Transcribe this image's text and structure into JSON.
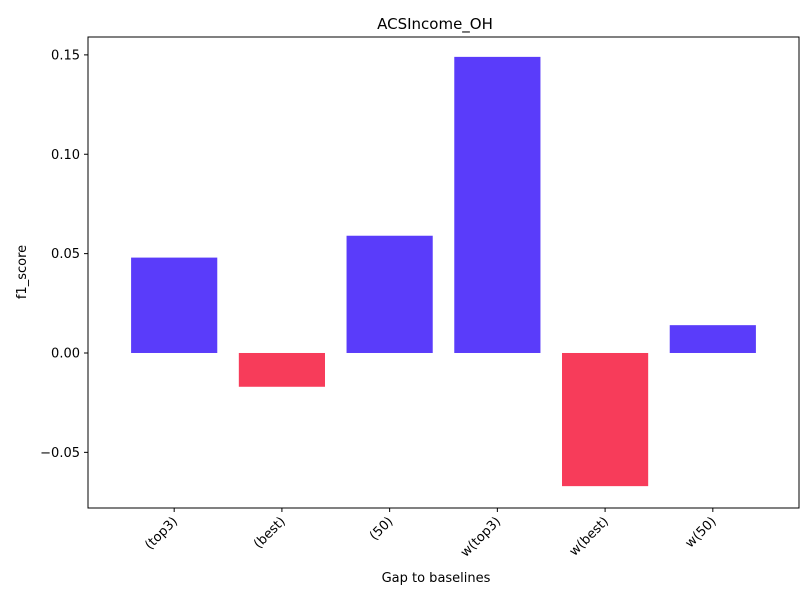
{
  "chart_data": {
    "type": "bar",
    "title": "ACSIncome_OH",
    "xlabel": "Gap to baselines",
    "ylabel": "f1_score",
    "categories": [
      "(top3)",
      "(best)",
      "(50)",
      "w(top3)",
      "w(best)",
      "w(50)"
    ],
    "values": [
      0.048,
      -0.017,
      0.059,
      0.149,
      -0.067,
      0.014
    ],
    "ylim": [
      -0.078,
      0.159
    ],
    "yticks": [
      -0.05,
      0.0,
      0.05,
      0.1,
      0.15
    ],
    "ytick_labels": [
      "−0.05",
      "0.00",
      "0.05",
      "0.10",
      "0.15"
    ],
    "grid": false,
    "colors": {
      "positive": "#5a3cfa",
      "negative": "#f73c5a"
    }
  }
}
